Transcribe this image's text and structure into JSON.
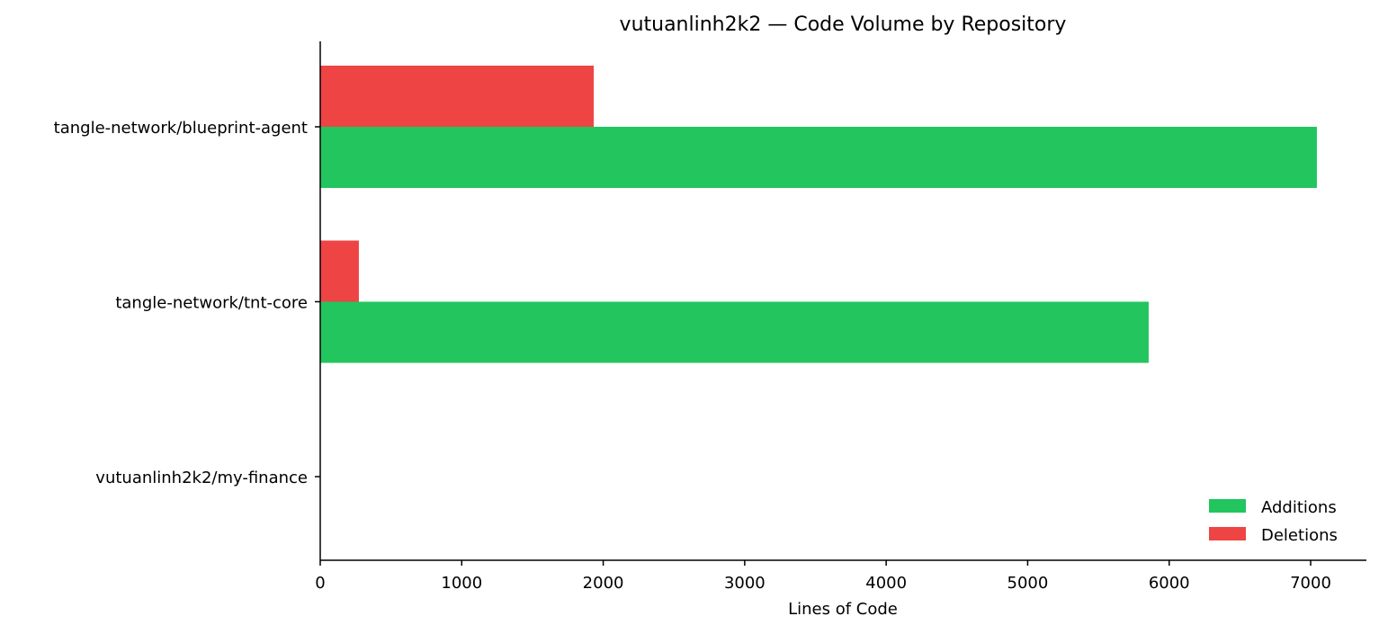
{
  "chart_data": {
    "type": "bar",
    "orientation": "horizontal",
    "title": "vutuanlinh2k2 — Code Volume by Repository",
    "xlabel": "Lines of Code",
    "ylabel": "",
    "categories": [
      "tangle-network/blueprint-agent",
      "tangle-network/tnt-core",
      "vutuanlinh2k2/my-finance"
    ],
    "series": [
      {
        "name": "Additions",
        "color": "#22c55e",
        "values": [
          7044,
          5855,
          0
        ]
      },
      {
        "name": "Deletions",
        "color": "#ef4444",
        "values": [
          1933,
          273,
          0
        ]
      }
    ],
    "xlim": [
      0,
      7394
    ],
    "xticks": [
      0,
      1000,
      2000,
      3000,
      4000,
      5000,
      6000,
      7000
    ],
    "grid": false,
    "legend": "bottom-right"
  }
}
